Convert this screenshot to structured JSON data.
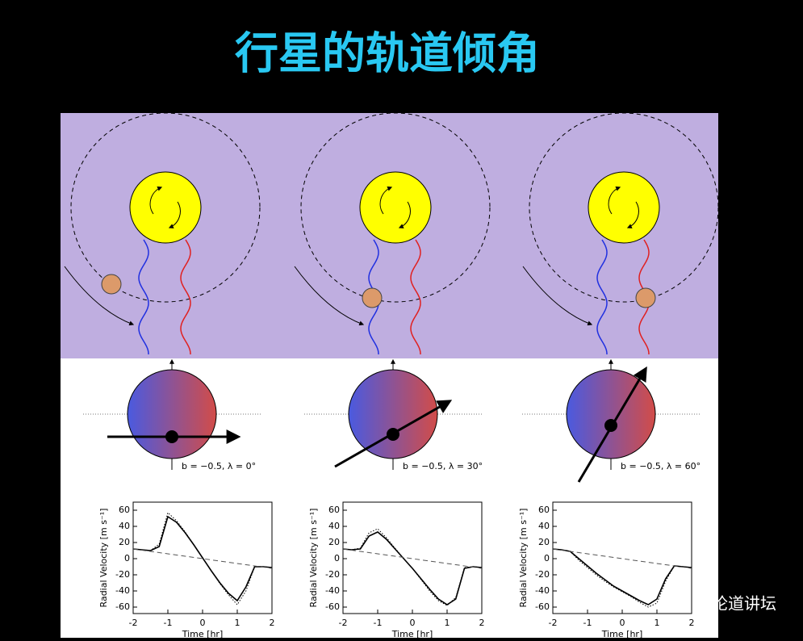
{
  "title": "行星的轨道倾角",
  "watermark": "格致论道讲坛",
  "panels": [
    {
      "label": "b = −0.5, λ = 0°"
    },
    {
      "label": "b = −0.5, λ = 30°"
    },
    {
      "label": "b = −0.5, λ = 60°"
    }
  ],
  "chart_data": [
    {
      "type": "line",
      "xlabel": "Time [hr]",
      "ylabel": "Radial Velocity [m s⁻¹]",
      "xlim": [
        -2,
        2
      ],
      "ylim": [
        -68,
        70
      ],
      "xticks": [
        -2,
        -1,
        0,
        1,
        2
      ],
      "yticks": [
        -60,
        -40,
        -20,
        0,
        20,
        40,
        60
      ],
      "x": [
        -2,
        -1.75,
        -1.5,
        -1.25,
        -1,
        -0.75,
        -0.5,
        -0.25,
        0,
        0.25,
        0.5,
        0.75,
        1,
        1.25,
        1.5,
        1.75,
        2
      ],
      "series": [
        {
          "color": "#000",
          "style": "solid",
          "values": [
            12,
            11,
            10,
            15,
            52,
            45,
            32,
            17,
            1,
            -15,
            -30,
            -43,
            -52,
            -35,
            -10,
            -10,
            -11
          ]
        },
        {
          "color": "#000",
          "style": "dotted",
          "values": [
            12,
            11,
            10,
            18,
            57,
            47,
            33,
            17,
            1,
            -15,
            -31,
            -45,
            -57,
            -40,
            -10,
            -10,
            -11
          ]
        },
        {
          "color": "#555",
          "style": "dashed",
          "x": [
            -2,
            2
          ],
          "values": [
            12,
            -12
          ]
        }
      ]
    },
    {
      "type": "line",
      "xlabel": "Time [hr]",
      "ylabel": "Radial Velocity [m s⁻¹]",
      "xlim": [
        -2,
        2
      ],
      "ylim": [
        -68,
        70
      ],
      "xticks": [
        -2,
        -1,
        0,
        1,
        2
      ],
      "yticks": [
        -60,
        -40,
        -20,
        0,
        20,
        40,
        60
      ],
      "x": [
        -2,
        -1.75,
        -1.5,
        -1.25,
        -1,
        -0.75,
        -0.5,
        -0.25,
        0,
        0.25,
        0.5,
        0.75,
        1,
        1.25,
        1.5,
        1.75,
        2
      ],
      "series": [
        {
          "color": "#000",
          "style": "solid",
          "values": [
            12,
            11,
            12,
            28,
            33,
            24,
            12,
            0,
            -12,
            -25,
            -38,
            -50,
            -57,
            -50,
            -12,
            -10,
            -11
          ]
        },
        {
          "color": "#000",
          "style": "dotted",
          "values": [
            12,
            11,
            13,
            32,
            37,
            26,
            13,
            0,
            -12,
            -26,
            -40,
            -52,
            -58,
            -48,
            -11,
            -10,
            -11
          ]
        },
        {
          "color": "#555",
          "style": "dashed",
          "x": [
            -2,
            2
          ],
          "values": [
            12,
            -12
          ]
        }
      ]
    },
    {
      "type": "line",
      "xlabel": "Time [hr]",
      "ylabel": "Radial Velocity [m s⁻¹]",
      "xlim": [
        -2,
        2
      ],
      "ylim": [
        -68,
        70
      ],
      "xticks": [
        -2,
        -1,
        0,
        1,
        2
      ],
      "yticks": [
        -60,
        -40,
        -20,
        0,
        20,
        40,
        60
      ],
      "x": [
        -2,
        -1.75,
        -1.5,
        -1.25,
        -1,
        -0.75,
        -0.5,
        -0.25,
        0,
        0.25,
        0.5,
        0.75,
        1,
        1.25,
        1.5,
        1.75,
        2
      ],
      "series": [
        {
          "color": "#000",
          "style": "solid",
          "values": [
            12,
            11,
            9,
            0,
            -9,
            -18,
            -26,
            -34,
            -40,
            -46,
            -52,
            -57,
            -50,
            -25,
            -9,
            -10,
            -11
          ]
        },
        {
          "color": "#000",
          "style": "dotted",
          "values": [
            12,
            11,
            9,
            -2,
            -11,
            -20,
            -28,
            -35,
            -41,
            -47,
            -54,
            -60,
            -55,
            -28,
            -9,
            -10,
            -11
          ]
        },
        {
          "color": "#555",
          "style": "dashed",
          "x": [
            -2,
            2
          ],
          "values": [
            12,
            -12
          ]
        }
      ]
    }
  ]
}
